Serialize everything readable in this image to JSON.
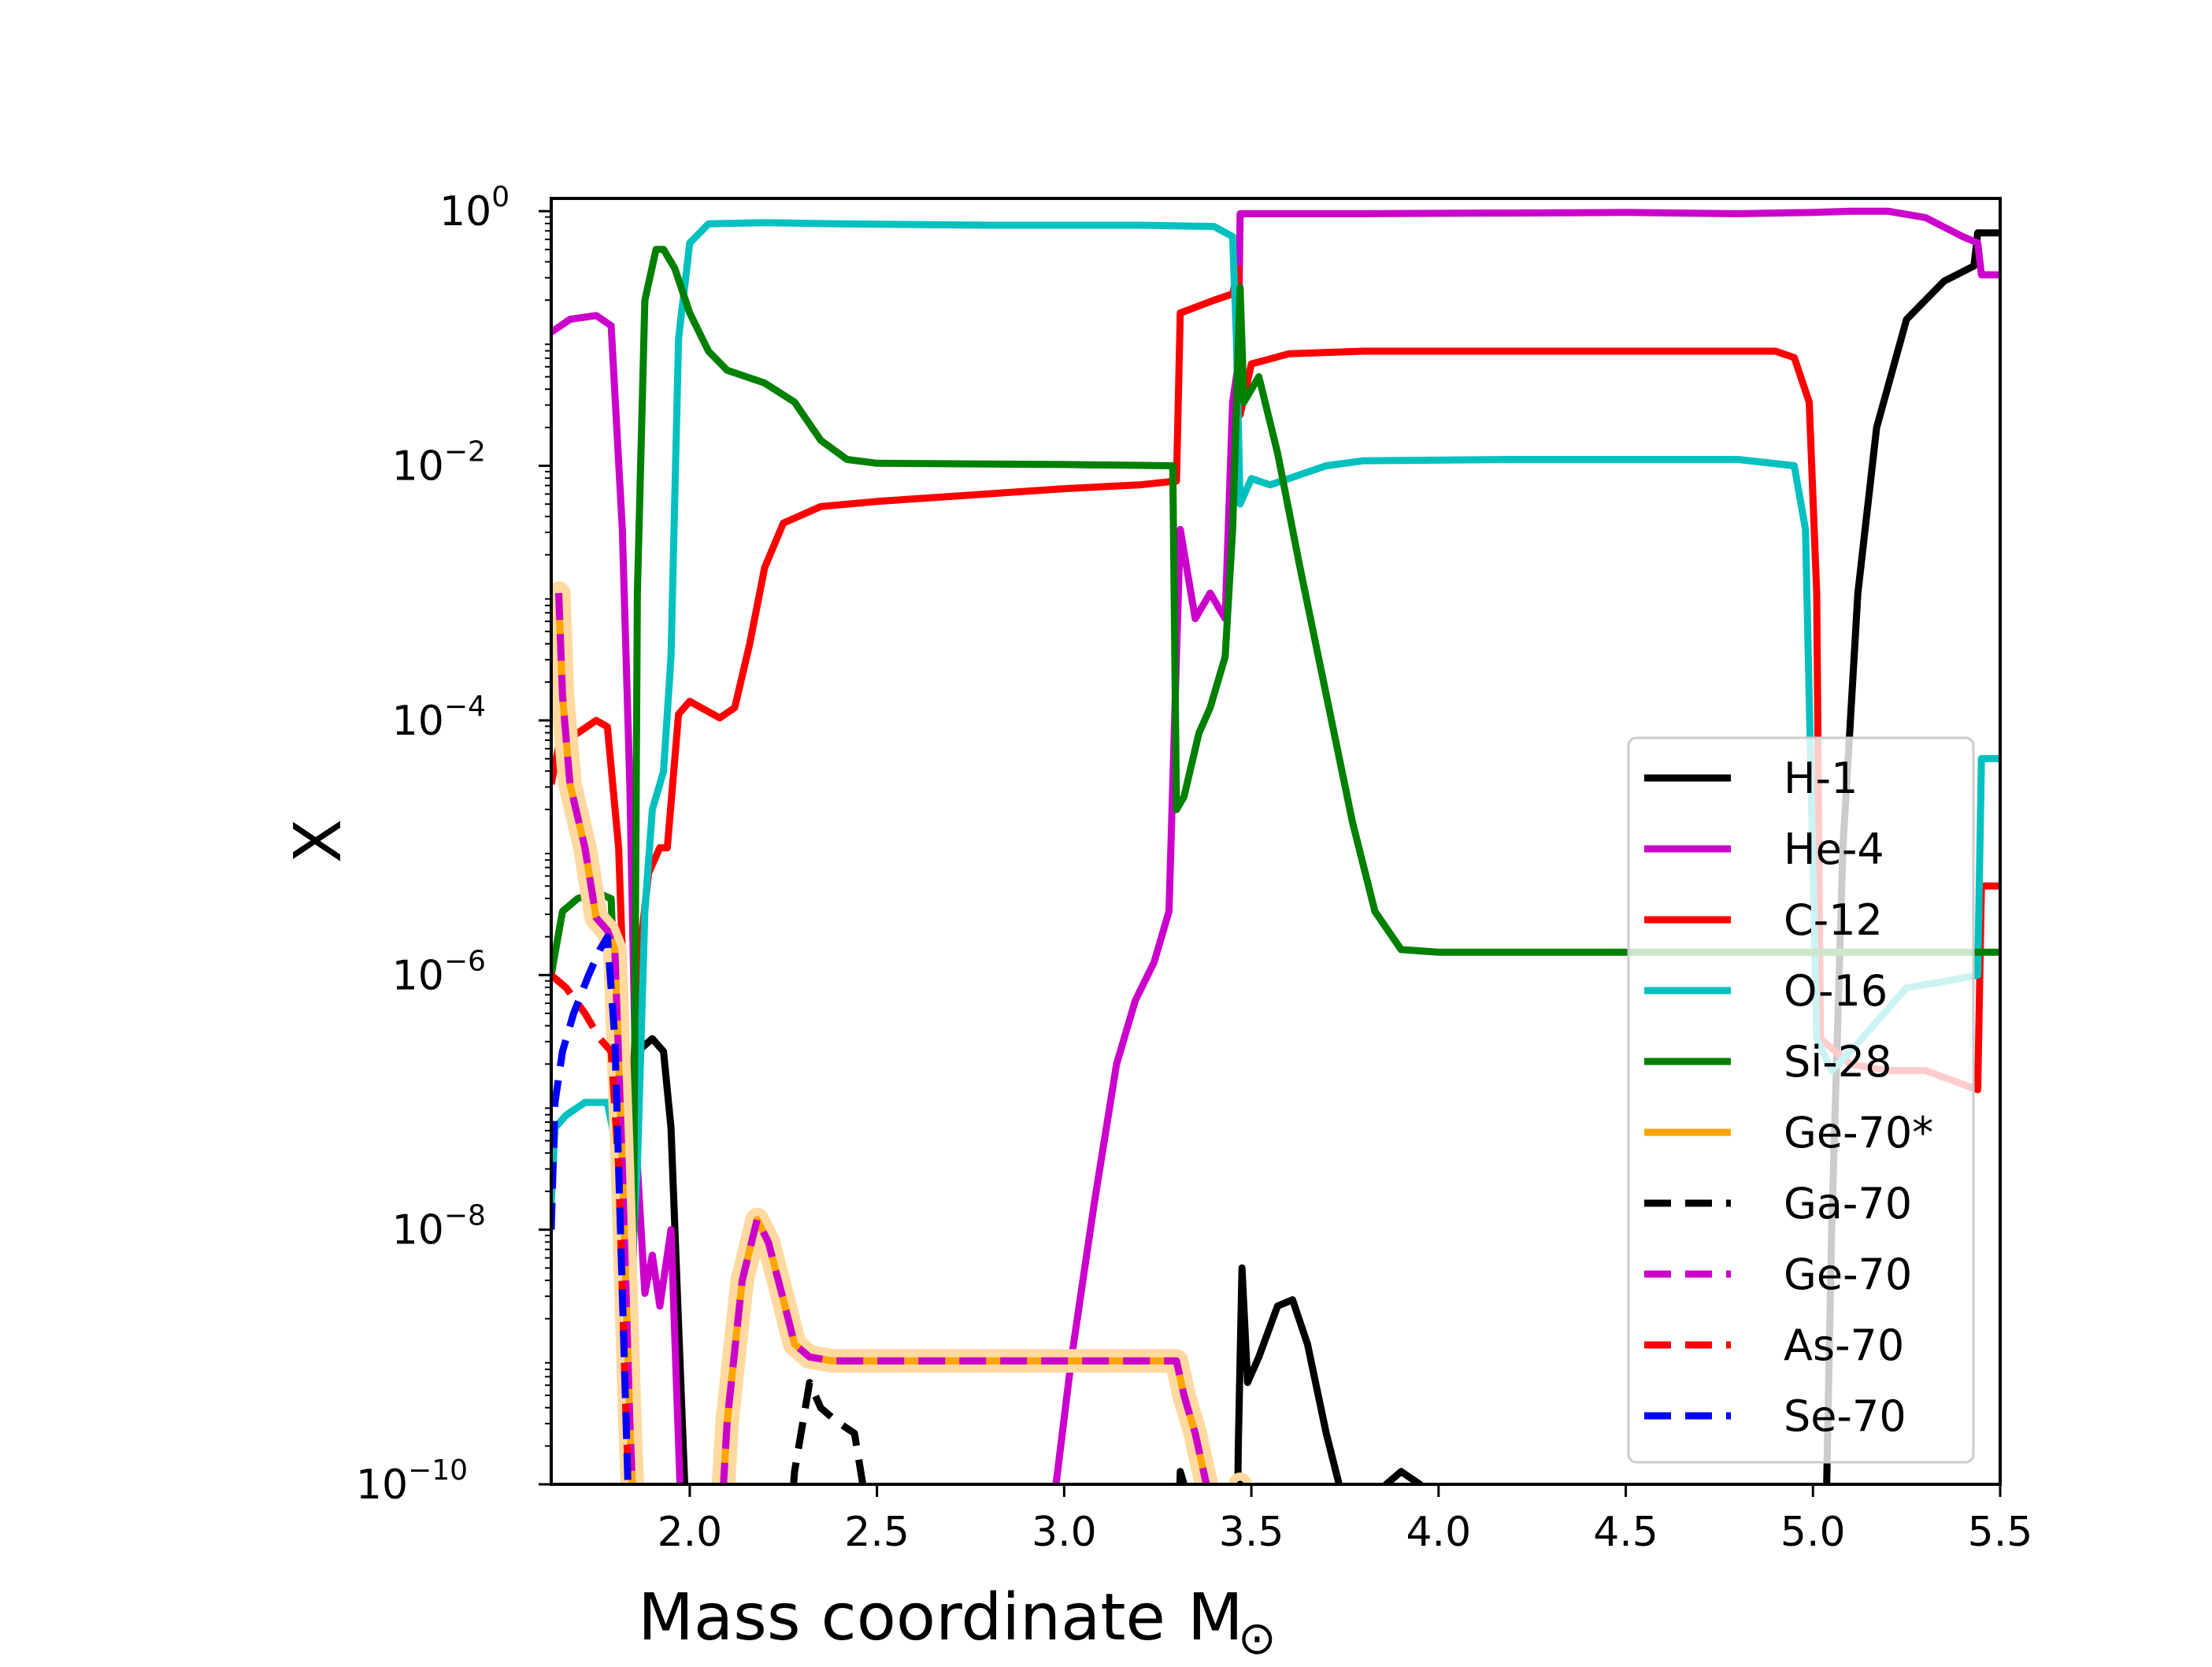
{
  "chart_data": {
    "type": "line",
    "title": "",
    "xlabel": "Mass coordinate",
    "xlabel_symbol": "M",
    "xlabel_sub": "⊙",
    "ylabel": "X",
    "yscale": "log",
    "xlim": [
      1.63,
      5.5
    ],
    "ylim_exp": [
      -10,
      0.1
    ],
    "x_ticks": [
      2.0,
      2.5,
      3.0,
      3.5,
      4.0,
      4.5,
      5.0,
      5.5
    ],
    "x_tick_labels": [
      "2.0",
      "2.5",
      "3.0",
      "3.5",
      "4.0",
      "4.5",
      "5.0",
      "5.5"
    ],
    "y_tick_exponents": [
      0,
      -2,
      -4,
      -6,
      -8,
      -10
    ],
    "y_tick_base": "10",
    "y_tick_exp_labels": [
      "0",
      "−2",
      "−4",
      "−6",
      "−8",
      "−10"
    ],
    "legend_position": "center-right",
    "series": [
      {
        "name": "H-1",
        "color": "#000000",
        "dash": false,
        "points": [
          [
            1.63,
            -11
          ],
          [
            1.83,
            -11
          ],
          [
            1.86,
            -6.6
          ],
          [
            1.9,
            -6.5
          ],
          [
            1.93,
            -6.6
          ],
          [
            1.95,
            -7.2
          ],
          [
            1.98,
            -9.5
          ],
          [
            2.0,
            -11
          ],
          [
            3.46,
            -11
          ],
          [
            3.465,
            -9.7
          ],
          [
            3.475,
            -8.3
          ],
          [
            3.49,
            -9.2
          ],
          [
            3.52,
            -9.0
          ],
          [
            3.57,
            -8.6
          ],
          [
            3.61,
            -8.55
          ],
          [
            3.65,
            -8.9
          ],
          [
            3.7,
            -9.6
          ],
          [
            3.76,
            -10.3
          ],
          [
            3.82,
            -10.5
          ],
          [
            3.86,
            -10.0
          ],
          [
            3.9,
            -9.9
          ],
          [
            3.95,
            -10.0
          ],
          [
            4.0,
            -10.3
          ],
          [
            4.05,
            -11
          ],
          [
            5.03,
            -11
          ],
          [
            5.05,
            -8
          ],
          [
            5.08,
            -5
          ],
          [
            5.12,
            -3
          ],
          [
            5.17,
            -1.7
          ],
          [
            5.25,
            -0.85
          ],
          [
            5.35,
            -0.55
          ],
          [
            5.43,
            -0.43
          ],
          [
            5.44,
            -0.17
          ],
          [
            5.5,
            -0.17
          ]
        ]
      },
      {
        "name": "He-4",
        "color": "#cc00cc",
        "dash": false,
        "points": [
          [
            1.63,
            -0.95
          ],
          [
            1.68,
            -0.85
          ],
          [
            1.75,
            -0.82
          ],
          [
            1.79,
            -0.9
          ],
          [
            1.82,
            -2.5
          ],
          [
            1.84,
            -4.5
          ],
          [
            1.86,
            -7.5
          ],
          [
            1.88,
            -8.5
          ],
          [
            1.9,
            -8.2
          ],
          [
            1.92,
            -8.6
          ],
          [
            1.95,
            -8.0
          ],
          [
            1.98,
            -10.5
          ],
          [
            2.0,
            -11
          ],
          [
            2.95,
            -11
          ],
          [
            2.97,
            -10.2
          ],
          [
            3.02,
            -9.0
          ],
          [
            3.08,
            -7.8
          ],
          [
            3.14,
            -6.7
          ],
          [
            3.19,
            -6.2
          ],
          [
            3.24,
            -5.9
          ],
          [
            3.28,
            -5.5
          ],
          [
            3.3,
            -3.5
          ],
          [
            3.31,
            -2.5
          ],
          [
            3.35,
            -3.2
          ],
          [
            3.39,
            -3.0
          ],
          [
            3.43,
            -3.2
          ],
          [
            3.45,
            -1.5
          ],
          [
            3.465,
            -1.2
          ],
          [
            3.47,
            -0.02
          ],
          [
            3.8,
            -0.02
          ],
          [
            4.5,
            -0.01
          ],
          [
            4.8,
            -0.02
          ],
          [
            5.0,
            -0.01
          ],
          [
            5.1,
            0
          ],
          [
            5.2,
            0
          ],
          [
            5.3,
            -0.05
          ],
          [
            5.4,
            -0.2
          ],
          [
            5.44,
            -0.25
          ],
          [
            5.45,
            -0.5
          ],
          [
            5.5,
            -0.5
          ]
        ]
      },
      {
        "name": "C-12",
        "color": "#ff0000",
        "dash": false,
        "points": [
          [
            1.63,
            -4.5
          ],
          [
            1.65,
            -4.2
          ],
          [
            1.7,
            -4.1
          ],
          [
            1.75,
            -4.0
          ],
          [
            1.78,
            -4.05
          ],
          [
            1.81,
            -5.0
          ],
          [
            1.84,
            -7.5
          ],
          [
            1.86,
            -6.0
          ],
          [
            1.89,
            -5.2
          ],
          [
            1.92,
            -5.0
          ],
          [
            1.94,
            -5.0
          ],
          [
            1.97,
            -3.95
          ],
          [
            2.0,
            -3.85
          ],
          [
            2.03,
            -3.9
          ],
          [
            2.08,
            -3.98
          ],
          [
            2.12,
            -3.9
          ],
          [
            2.16,
            -3.4
          ],
          [
            2.2,
            -2.8
          ],
          [
            2.25,
            -2.45
          ],
          [
            2.35,
            -2.32
          ],
          [
            2.5,
            -2.28
          ],
          [
            2.8,
            -2.22
          ],
          [
            3.0,
            -2.18
          ],
          [
            3.2,
            -2.15
          ],
          [
            3.3,
            -2.12
          ],
          [
            3.31,
            -0.8
          ],
          [
            3.4,
            -0.7
          ],
          [
            3.45,
            -0.65
          ],
          [
            3.465,
            -0.45
          ],
          [
            3.47,
            -1.6
          ],
          [
            3.5,
            -1.2
          ],
          [
            3.6,
            -1.12
          ],
          [
            3.8,
            -1.1
          ],
          [
            4.0,
            -1.1
          ],
          [
            4.5,
            -1.1
          ],
          [
            4.9,
            -1.1
          ],
          [
            4.95,
            -1.15
          ],
          [
            4.99,
            -1.5
          ],
          [
            5.01,
            -3.0
          ],
          [
            5.02,
            -6.5
          ],
          [
            5.1,
            -6.7
          ],
          [
            5.2,
            -6.75
          ],
          [
            5.3,
            -6.75
          ],
          [
            5.44,
            -6.9
          ],
          [
            5.45,
            -5.3
          ],
          [
            5.5,
            -5.3
          ]
        ]
      },
      {
        "name": "O-16",
        "color": "#00c0c0",
        "dash": false,
        "points": [
          [
            1.63,
            -7.8
          ],
          [
            1.64,
            -7.2
          ],
          [
            1.67,
            -7.1
          ],
          [
            1.72,
            -7.0
          ],
          [
            1.78,
            -7.0
          ],
          [
            1.82,
            -7.6
          ],
          [
            1.84,
            -8.6
          ],
          [
            1.86,
            -7.5
          ],
          [
            1.88,
            -5.5
          ],
          [
            1.9,
            -4.7
          ],
          [
            1.93,
            -4.4
          ],
          [
            1.95,
            -3.5
          ],
          [
            1.97,
            -1.0
          ],
          [
            2.0,
            -0.25
          ],
          [
            2.05,
            -0.1
          ],
          [
            2.2,
            -0.09
          ],
          [
            2.4,
            -0.1
          ],
          [
            2.8,
            -0.11
          ],
          [
            3.2,
            -0.11
          ],
          [
            3.4,
            -0.12
          ],
          [
            3.45,
            -0.2
          ],
          [
            3.46,
            -1.0
          ],
          [
            3.47,
            -2.3
          ],
          [
            3.5,
            -2.1
          ],
          [
            3.55,
            -2.15
          ],
          [
            3.6,
            -2.1
          ],
          [
            3.7,
            -2.0
          ],
          [
            3.8,
            -1.96
          ],
          [
            4.2,
            -1.95
          ],
          [
            4.8,
            -1.95
          ],
          [
            4.95,
            -2.0
          ],
          [
            4.98,
            -2.5
          ],
          [
            4.995,
            -4.5
          ],
          [
            5.01,
            -6.5
          ],
          [
            5.05,
            -6.75
          ],
          [
            5.1,
            -6.6
          ],
          [
            5.25,
            -6.1
          ],
          [
            5.35,
            -6.05
          ],
          [
            5.44,
            -6.0
          ],
          [
            5.45,
            -4.3
          ],
          [
            5.5,
            -4.3
          ]
        ]
      },
      {
        "name": "Si-28",
        "color": "#008000",
        "dash": false,
        "points": [
          [
            1.63,
            -6.0
          ],
          [
            1.66,
            -5.5
          ],
          [
            1.7,
            -5.4
          ],
          [
            1.75,
            -5.35
          ],
          [
            1.79,
            -5.4
          ],
          [
            1.81,
            -7.0
          ],
          [
            1.83,
            -8.8
          ],
          [
            1.85,
            -8.0
          ],
          [
            1.86,
            -3.0
          ],
          [
            1.88,
            -0.7
          ],
          [
            1.91,
            -0.3
          ],
          [
            1.93,
            -0.3
          ],
          [
            1.96,
            -0.45
          ],
          [
            2.0,
            -0.8
          ],
          [
            2.05,
            -1.1
          ],
          [
            2.1,
            -1.25
          ],
          [
            2.2,
            -1.35
          ],
          [
            2.28,
            -1.5
          ],
          [
            2.35,
            -1.8
          ],
          [
            2.42,
            -1.95
          ],
          [
            2.5,
            -1.98
          ],
          [
            3.0,
            -1.99
          ],
          [
            3.29,
            -2.0
          ],
          [
            3.3,
            -4.7
          ],
          [
            3.32,
            -4.6
          ],
          [
            3.36,
            -4.1
          ],
          [
            3.39,
            -3.9
          ],
          [
            3.43,
            -3.5
          ],
          [
            3.45,
            -2.5
          ],
          [
            3.47,
            -0.6
          ],
          [
            3.48,
            -1.5
          ],
          [
            3.52,
            -1.3
          ],
          [
            3.57,
            -1.9
          ],
          [
            3.63,
            -2.8
          ],
          [
            3.7,
            -3.8
          ],
          [
            3.77,
            -4.8
          ],
          [
            3.83,
            -5.5
          ],
          [
            3.9,
            -5.8
          ],
          [
            4.0,
            -5.82
          ],
          [
            5.0,
            -5.82
          ],
          [
            5.5,
            -5.82
          ]
        ]
      },
      {
        "name": "Ge-70*",
        "color": "#ffa500",
        "dash": false,
        "halo": true,
        "points": [
          [
            1.65,
            -3.0
          ],
          [
            1.66,
            -3.8
          ],
          [
            1.68,
            -4.5
          ],
          [
            1.72,
            -5.0
          ],
          [
            1.75,
            -5.55
          ],
          [
            1.78,
            -5.65
          ],
          [
            1.8,
            -5.8
          ],
          [
            1.82,
            -7.5
          ],
          [
            1.84,
            -9.5
          ],
          [
            1.86,
            -11
          ],
          [
            2.07,
            -11
          ],
          [
            2.08,
            -10.5
          ],
          [
            2.1,
            -9.5
          ],
          [
            2.14,
            -8.4
          ],
          [
            2.18,
            -7.92
          ],
          [
            2.21,
            -8.1
          ],
          [
            2.25,
            -8.55
          ],
          [
            2.28,
            -8.9
          ],
          [
            2.32,
            -9.0
          ],
          [
            2.38,
            -9.03
          ],
          [
            2.5,
            -9.03
          ],
          [
            3.0,
            -9.03
          ],
          [
            3.3,
            -9.03
          ],
          [
            3.32,
            -9.3
          ],
          [
            3.35,
            -9.6
          ],
          [
            3.38,
            -10.0
          ],
          [
            3.4,
            -11
          ],
          [
            3.46,
            -11
          ],
          [
            3.47,
            -10.0
          ],
          [
            3.48,
            -11
          ]
        ]
      },
      {
        "name": "Ga-70",
        "color": "#000000",
        "dash": true,
        "points": [
          [
            2.25,
            -11
          ],
          [
            2.28,
            -9.9
          ],
          [
            2.32,
            -9.2
          ],
          [
            2.35,
            -9.4
          ],
          [
            2.39,
            -9.5
          ],
          [
            2.44,
            -9.6
          ],
          [
            2.49,
            -10.5
          ],
          [
            2.52,
            -11
          ],
          [
            3.3,
            -11
          ],
          [
            3.31,
            -9.9
          ],
          [
            3.33,
            -10.1
          ],
          [
            3.35,
            -10.3
          ],
          [
            3.38,
            -11
          ],
          [
            3.44,
            -11
          ],
          [
            3.46,
            -10.2
          ],
          [
            3.47,
            -10.0
          ],
          [
            3.48,
            -11
          ]
        ]
      },
      {
        "name": "Ge-70",
        "color": "#cc00cc",
        "dash": true,
        "points": [
          [
            1.65,
            -3.0
          ],
          [
            1.66,
            -3.8
          ],
          [
            1.68,
            -4.5
          ],
          [
            1.72,
            -5.0
          ],
          [
            1.75,
            -5.55
          ],
          [
            1.78,
            -5.65
          ],
          [
            1.8,
            -5.8
          ],
          [
            1.82,
            -7.5
          ],
          [
            1.84,
            -9.5
          ],
          [
            1.86,
            -11
          ],
          [
            2.07,
            -11
          ],
          [
            2.08,
            -10.5
          ],
          [
            2.1,
            -9.5
          ],
          [
            2.14,
            -8.4
          ],
          [
            2.18,
            -7.92
          ],
          [
            2.21,
            -8.1
          ],
          [
            2.25,
            -8.55
          ],
          [
            2.28,
            -8.9
          ],
          [
            2.32,
            -9.0
          ],
          [
            2.38,
            -9.03
          ],
          [
            2.5,
            -9.03
          ],
          [
            3.0,
            -9.03
          ],
          [
            3.3,
            -9.03
          ],
          [
            3.32,
            -9.3
          ],
          [
            3.35,
            -9.6
          ],
          [
            3.38,
            -10.0
          ],
          [
            3.4,
            -11
          ]
        ]
      },
      {
        "name": "As-70",
        "color": "#ff0000",
        "dash": true,
        "points": [
          [
            1.63,
            -6.0
          ],
          [
            1.67,
            -6.1
          ],
          [
            1.72,
            -6.3
          ],
          [
            1.76,
            -6.5
          ],
          [
            1.79,
            -6.6
          ],
          [
            1.81,
            -7.5
          ],
          [
            1.83,
            -9.5
          ],
          [
            1.85,
            -11
          ]
        ]
      },
      {
        "name": "Se-70",
        "color": "#0000ff",
        "dash": true,
        "points": [
          [
            1.63,
            -8.0
          ],
          [
            1.64,
            -7.0
          ],
          [
            1.66,
            -6.6
          ],
          [
            1.69,
            -6.3
          ],
          [
            1.73,
            -6.0
          ],
          [
            1.76,
            -5.8
          ],
          [
            1.78,
            -5.7
          ],
          [
            1.8,
            -6.5
          ],
          [
            1.82,
            -8.5
          ],
          [
            1.84,
            -10.5
          ],
          [
            1.85,
            -11
          ]
        ]
      }
    ]
  }
}
